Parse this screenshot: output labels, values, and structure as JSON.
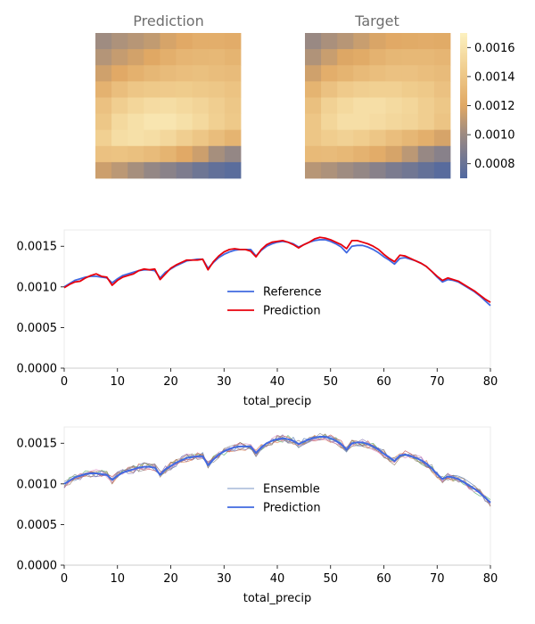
{
  "heatmaps": {
    "prediction_title": "Prediction",
    "target_title": "Target",
    "colorbar_ticks": [
      "0.0008",
      "0.0010",
      "0.0012",
      "0.0014",
      "0.0016"
    ]
  },
  "chart_data": [
    {
      "type": "heatmap",
      "title": "Prediction",
      "rows": 9,
      "cols": 9,
      "values": [
        [
          0.00101,
          0.00105,
          0.00108,
          0.00111,
          0.00117,
          0.00121,
          0.00124,
          0.00124,
          0.00123
        ],
        [
          0.00107,
          0.00112,
          0.00116,
          0.0012,
          0.00125,
          0.00129,
          0.0013,
          0.00131,
          0.00128
        ],
        [
          0.00115,
          0.00121,
          0.00126,
          0.0013,
          0.00133,
          0.00135,
          0.00136,
          0.00134,
          0.00133
        ],
        [
          0.00127,
          0.00135,
          0.0014,
          0.00142,
          0.00143,
          0.00144,
          0.00142,
          0.00141,
          0.00138
        ],
        [
          0.00137,
          0.00146,
          0.00151,
          0.00155,
          0.00156,
          0.00153,
          0.0015,
          0.00146,
          0.00141
        ],
        [
          0.00141,
          0.00153,
          0.00158,
          0.00162,
          0.00162,
          0.00158,
          0.00153,
          0.00147,
          0.00142
        ],
        [
          0.00147,
          0.00156,
          0.00158,
          0.00156,
          0.00152,
          0.00146,
          0.0014,
          0.00134,
          0.00128
        ],
        [
          0.00137,
          0.00138,
          0.00136,
          0.00133,
          0.00128,
          0.00121,
          0.00114,
          0.00103,
          0.00097
        ],
        [
          0.00114,
          0.00109,
          0.00103,
          0.00097,
          0.00093,
          0.00088,
          0.00082,
          0.00077,
          0.00074
        ]
      ],
      "colormap_range": [
        0.0007,
        0.0017
      ]
    },
    {
      "type": "heatmap",
      "title": "Target",
      "rows": 9,
      "cols": 9,
      "values": [
        [
          0.00099,
          0.00104,
          0.00108,
          0.00113,
          0.00118,
          0.00121,
          0.00122,
          0.00123,
          0.00122
        ],
        [
          0.00106,
          0.00113,
          0.00119,
          0.00122,
          0.00127,
          0.0013,
          0.00131,
          0.00131,
          0.00129
        ],
        [
          0.00115,
          0.00124,
          0.00128,
          0.00132,
          0.00135,
          0.00137,
          0.00137,
          0.00135,
          0.00133
        ],
        [
          0.00128,
          0.00137,
          0.00143,
          0.00146,
          0.00147,
          0.00147,
          0.00144,
          0.00142,
          0.00137
        ],
        [
          0.00136,
          0.00148,
          0.00153,
          0.00157,
          0.00157,
          0.00154,
          0.00151,
          0.00146,
          0.00141
        ],
        [
          0.0014,
          0.00151,
          0.00157,
          0.00157,
          0.00155,
          0.00152,
          0.0015,
          0.00146,
          0.00139
        ],
        [
          0.0014,
          0.00145,
          0.00148,
          0.00145,
          0.0014,
          0.00135,
          0.0013,
          0.00125,
          0.00117
        ],
        [
          0.00132,
          0.00133,
          0.00131,
          0.00127,
          0.00123,
          0.00117,
          0.00109,
          0.00098,
          0.00092
        ],
        [
          0.00108,
          0.00105,
          0.00101,
          0.00097,
          0.00092,
          0.00087,
          0.00083,
          0.00078,
          0.00073
        ]
      ],
      "colormap_range": [
        0.0007,
        0.0017
      ]
    },
    {
      "type": "line",
      "xlabel": "total_precip",
      "ylabel": "",
      "xlim": [
        0,
        80
      ],
      "ylim": [
        0,
        0.0017
      ],
      "xticks": [
        "0",
        "10",
        "20",
        "30",
        "40",
        "50",
        "60",
        "70",
        "80"
      ],
      "yticks": [
        "0.0000",
        "0.0005",
        "0.0010",
        "0.0015"
      ],
      "legend": "center",
      "series": [
        {
          "name": "Reference",
          "color": "#4169e1",
          "points": [
            [
              0,
              0.001
            ],
            [
              1,
              0.00104
            ],
            [
              2,
              0.00108
            ],
            [
              3,
              0.0011
            ],
            [
              4,
              0.00112
            ],
            [
              5,
              0.00113
            ],
            [
              6,
              0.00113
            ],
            [
              7,
              0.00112
            ],
            [
              8,
              0.00111
            ],
            [
              9,
              0.00105
            ],
            [
              10,
              0.0011
            ],
            [
              11,
              0.00114
            ],
            [
              12,
              0.00116
            ],
            [
              13,
              0.00118
            ],
            [
              14,
              0.0012
            ],
            [
              15,
              0.00121
            ],
            [
              16,
              0.00121
            ],
            [
              17,
              0.0012
            ],
            [
              18,
              0.00111
            ],
            [
              19,
              0.00118
            ],
            [
              20,
              0.00122
            ],
            [
              21,
              0.00126
            ],
            [
              22,
              0.00129
            ],
            [
              23,
              0.00132
            ],
            [
              24,
              0.00133
            ],
            [
              25,
              0.00134
            ],
            [
              26,
              0.00134
            ],
            [
              27,
              0.00123
            ],
            [
              28,
              0.0013
            ],
            [
              29,
              0.00136
            ],
            [
              30,
              0.0014
            ],
            [
              31,
              0.00143
            ],
            [
              32,
              0.00145
            ],
            [
              33,
              0.00146
            ],
            [
              34,
              0.00146
            ],
            [
              35,
              0.00146
            ],
            [
              36,
              0.00138
            ],
            [
              37,
              0.00145
            ],
            [
              38,
              0.0015
            ],
            [
              39,
              0.00153
            ],
            [
              40,
              0.00155
            ],
            [
              41,
              0.00156
            ],
            [
              42,
              0.00155
            ],
            [
              43,
              0.00153
            ],
            [
              44,
              0.00149
            ],
            [
              45,
              0.00152
            ],
            [
              46,
              0.00155
            ],
            [
              47,
              0.00157
            ],
            [
              48,
              0.00158
            ],
            [
              49,
              0.00158
            ],
            [
              50,
              0.00156
            ],
            [
              51,
              0.00153
            ],
            [
              52,
              0.00149
            ],
            [
              53,
              0.00142
            ],
            [
              54,
              0.0015
            ],
            [
              55,
              0.00151
            ],
            [
              56,
              0.00151
            ],
            [
              57,
              0.00149
            ],
            [
              58,
              0.00146
            ],
            [
              59,
              0.00142
            ],
            [
              60,
              0.00137
            ],
            [
              61,
              0.00133
            ],
            [
              62,
              0.00128
            ],
            [
              63,
              0.00135
            ],
            [
              64,
              0.00136
            ],
            [
              65,
              0.00134
            ],
            [
              66,
              0.00132
            ],
            [
              67,
              0.00129
            ],
            [
              68,
              0.00125
            ],
            [
              69,
              0.00119
            ],
            [
              70,
              0.00112
            ],
            [
              71,
              0.00106
            ],
            [
              72,
              0.00109
            ],
            [
              73,
              0.00108
            ],
            [
              74,
              0.00106
            ],
            [
              75,
              0.00102
            ],
            [
              76,
              0.00098
            ],
            [
              77,
              0.00094
            ],
            [
              78,
              0.00089
            ],
            [
              79,
              0.00083
            ],
            [
              80,
              0.00077
            ]
          ]
        },
        {
          "name": "Prediction",
          "color": "#e8000b",
          "points": [
            [
              0,
              0.00099
            ],
            [
              1,
              0.00103
            ],
            [
              2,
              0.00106
            ],
            [
              3,
              0.00107
            ],
            [
              4,
              0.00111
            ],
            [
              5,
              0.00114
            ],
            [
              6,
              0.00116
            ],
            [
              7,
              0.00113
            ],
            [
              8,
              0.00112
            ],
            [
              9,
              0.00102
            ],
            [
              10,
              0.00108
            ],
            [
              11,
              0.00112
            ],
            [
              12,
              0.00114
            ],
            [
              13,
              0.00116
            ],
            [
              14,
              0.0012
            ],
            [
              15,
              0.00122
            ],
            [
              16,
              0.00121
            ],
            [
              17,
              0.00122
            ],
            [
              18,
              0.00109
            ],
            [
              19,
              0.00116
            ],
            [
              20,
              0.00123
            ],
            [
              21,
              0.00127
            ],
            [
              22,
              0.0013
            ],
            [
              23,
              0.00133
            ],
            [
              24,
              0.00133
            ],
            [
              25,
              0.00133
            ],
            [
              26,
              0.00134
            ],
            [
              27,
              0.00121
            ],
            [
              28,
              0.00131
            ],
            [
              29,
              0.00138
            ],
            [
              30,
              0.00143
            ],
            [
              31,
              0.00146
            ],
            [
              32,
              0.00147
            ],
            [
              33,
              0.00146
            ],
            [
              34,
              0.00146
            ],
            [
              35,
              0.00144
            ],
            [
              36,
              0.00137
            ],
            [
              37,
              0.00146
            ],
            [
              38,
              0.00152
            ],
            [
              39,
              0.00155
            ],
            [
              40,
              0.00156
            ],
            [
              41,
              0.00157
            ],
            [
              42,
              0.00155
            ],
            [
              43,
              0.00152
            ],
            [
              44,
              0.00148
            ],
            [
              45,
              0.00152
            ],
            [
              46,
              0.00155
            ],
            [
              47,
              0.00159
            ],
            [
              48,
              0.00161
            ],
            [
              49,
              0.0016
            ],
            [
              50,
              0.00158
            ],
            [
              51,
              0.00155
            ],
            [
              52,
              0.00152
            ],
            [
              53,
              0.00147
            ],
            [
              54,
              0.00157
            ],
            [
              55,
              0.00157
            ],
            [
              56,
              0.00155
            ],
            [
              57,
              0.00153
            ],
            [
              58,
              0.0015
            ],
            [
              59,
              0.00146
            ],
            [
              60,
              0.0014
            ],
            [
              61,
              0.00135
            ],
            [
              62,
              0.00131
            ],
            [
              63,
              0.00139
            ],
            [
              64,
              0.00138
            ],
            [
              65,
              0.00135
            ],
            [
              66,
              0.00132
            ],
            [
              67,
              0.00129
            ],
            [
              68,
              0.00125
            ],
            [
              69,
              0.00119
            ],
            [
              70,
              0.00113
            ],
            [
              71,
              0.00108
            ],
            [
              72,
              0.00111
            ],
            [
              73,
              0.00109
            ],
            [
              74,
              0.00107
            ],
            [
              75,
              0.00103
            ],
            [
              76,
              0.00099
            ],
            [
              77,
              0.00095
            ],
            [
              78,
              0.0009
            ],
            [
              79,
              0.00085
            ],
            [
              80,
              0.00081
            ]
          ]
        }
      ]
    },
    {
      "type": "line",
      "xlabel": "total_precip",
      "ylabel": "",
      "xlim": [
        0,
        80
      ],
      "ylim": [
        0,
        0.0017
      ],
      "xticks": [
        "0",
        "10",
        "20",
        "30",
        "40",
        "50",
        "60",
        "70",
        "80"
      ],
      "yticks": [
        "0.0000",
        "0.0005",
        "0.0010",
        "0.0015"
      ],
      "legend": "center",
      "ensemble_members": 8,
      "ensemble_spread": 5e-05,
      "ensemble_colors": [
        "#4c72b0",
        "#dd8452",
        "#55a868",
        "#c44e52",
        "#8172b3",
        "#937860",
        "#da8bc3",
        "#8c8c8c"
      ],
      "series": [
        {
          "name": "Ensemble",
          "color": "#4c72b0",
          "style": "thin"
        },
        {
          "name": "Prediction",
          "color": "#4169e1",
          "points_from": "reference"
        }
      ]
    }
  ]
}
